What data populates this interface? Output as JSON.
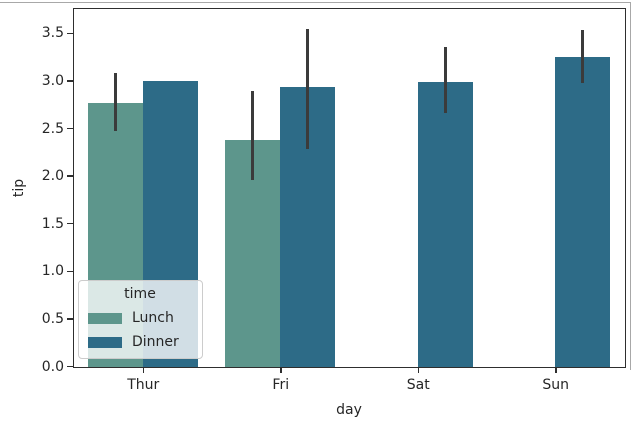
{
  "figure": {
    "background": "#ffffff",
    "frame_color": "#a8a8a8"
  },
  "chart_data": {
    "type": "bar",
    "title": "",
    "xlabel": "day",
    "ylabel": "tip",
    "categories": [
      "Thur",
      "Fri",
      "Sat",
      "Sun"
    ],
    "legend": {
      "title": "time",
      "position": "lower left",
      "entries": [
        "Lunch",
        "Dinner"
      ]
    },
    "series": [
      {
        "name": "Lunch",
        "color": "#5d968c",
        "values": [
          2.77,
          2.38,
          null,
          null
        ],
        "ci_low": [
          2.47,
          1.95,
          null,
          null
        ],
        "ci_high": [
          3.08,
          2.89,
          null,
          null
        ]
      },
      {
        "name": "Dinner",
        "color": "#2d6b87",
        "values": [
          3.0,
          2.94,
          2.99,
          3.26
        ],
        "ci_low": [
          null,
          2.28,
          2.66,
          2.97
        ],
        "ci_high": [
          null,
          3.54,
          3.35,
          3.53
        ]
      }
    ],
    "ylim": [
      0,
      3.75
    ],
    "yticks": [
      0.0,
      0.5,
      1.0,
      1.5,
      2.0,
      2.5,
      3.0,
      3.5
    ],
    "ytick_labels": [
      "0.0",
      "0.5",
      "1.0",
      "1.5",
      "2.0",
      "2.5",
      "3.0",
      "3.5"
    ],
    "grid": false,
    "error_bar_color": "#3b3b3b",
    "axis_color": "#2e2e2e",
    "text_color": "#262626"
  }
}
